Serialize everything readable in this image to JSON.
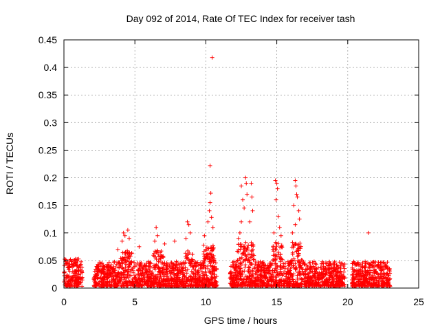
{
  "chart_data": {
    "type": "scatter",
    "title": "Day 092 of 2014, Rate Of TEC Index for receiver tash",
    "xlabel": "GPS time / hours",
    "ylabel": "ROTI / TECUs",
    "xlim": [
      0,
      25
    ],
    "ylim": [
      0,
      0.45
    ],
    "xticks": [
      "0",
      "5",
      "10",
      "15",
      "20",
      "25"
    ],
    "yticks": [
      "0",
      "0.05",
      "0.1",
      "0.15",
      "0.2",
      "0.25",
      "0.3",
      "0.35",
      "0.4",
      "0.45"
    ],
    "grid": true,
    "marker": "+",
    "color": "#ff0000",
    "series": [
      {
        "points": [
          [
            10.45,
            0.418
          ],
          [
            10.3,
            0.222
          ],
          [
            10.35,
            0.172
          ],
          [
            10.3,
            0.155
          ],
          [
            10.25,
            0.14
          ],
          [
            10.15,
            0.12
          ],
          [
            10.4,
            0.128
          ],
          [
            10.5,
            0.11
          ],
          [
            12.5,
            0.185
          ],
          [
            12.6,
            0.16
          ],
          [
            12.8,
            0.2
          ],
          [
            12.85,
            0.19
          ],
          [
            12.9,
            0.17
          ],
          [
            12.7,
            0.145
          ],
          [
            12.5,
            0.12
          ],
          [
            12.4,
            0.1
          ],
          [
            13.2,
            0.19
          ],
          [
            13.25,
            0.165
          ],
          [
            13.3,
            0.14
          ],
          [
            13.1,
            0.12
          ],
          [
            12.3,
            0.09
          ],
          [
            14.9,
            0.195
          ],
          [
            15.0,
            0.19
          ],
          [
            15.05,
            0.18
          ],
          [
            14.95,
            0.16
          ],
          [
            15.1,
            0.13
          ],
          [
            15.2,
            0.11
          ],
          [
            14.8,
            0.1
          ],
          [
            15.3,
            0.095
          ],
          [
            16.3,
            0.195
          ],
          [
            16.35,
            0.185
          ],
          [
            16.4,
            0.17
          ],
          [
            16.45,
            0.165
          ],
          [
            16.2,
            0.15
          ],
          [
            16.55,
            0.14
          ],
          [
            16.6,
            0.125
          ],
          [
            16.3,
            0.115
          ],
          [
            16.1,
            0.1
          ],
          [
            21.45,
            0.1
          ],
          [
            4.2,
            0.1
          ],
          [
            4.3,
            0.095
          ],
          [
            4.5,
            0.105
          ],
          [
            4.6,
            0.09
          ],
          [
            4.1,
            0.085
          ],
          [
            6.5,
            0.11
          ],
          [
            6.6,
            0.095
          ],
          [
            6.4,
            0.085
          ],
          [
            8.7,
            0.12
          ],
          [
            8.8,
            0.115
          ],
          [
            8.9,
            0.1
          ],
          [
            8.6,
            0.09
          ],
          [
            9.9,
            0.095
          ],
          [
            7.1,
            0.08
          ],
          [
            7.8,
            0.085
          ],
          [
            5.3,
            0.075
          ],
          [
            3.8,
            0.07
          ]
        ]
      }
    ],
    "segments": [
      [
        0,
        1.3
      ],
      [
        2.1,
        10.8
      ],
      [
        11.7,
        19.8
      ],
      [
        20.3,
        23.0
      ]
    ]
  }
}
